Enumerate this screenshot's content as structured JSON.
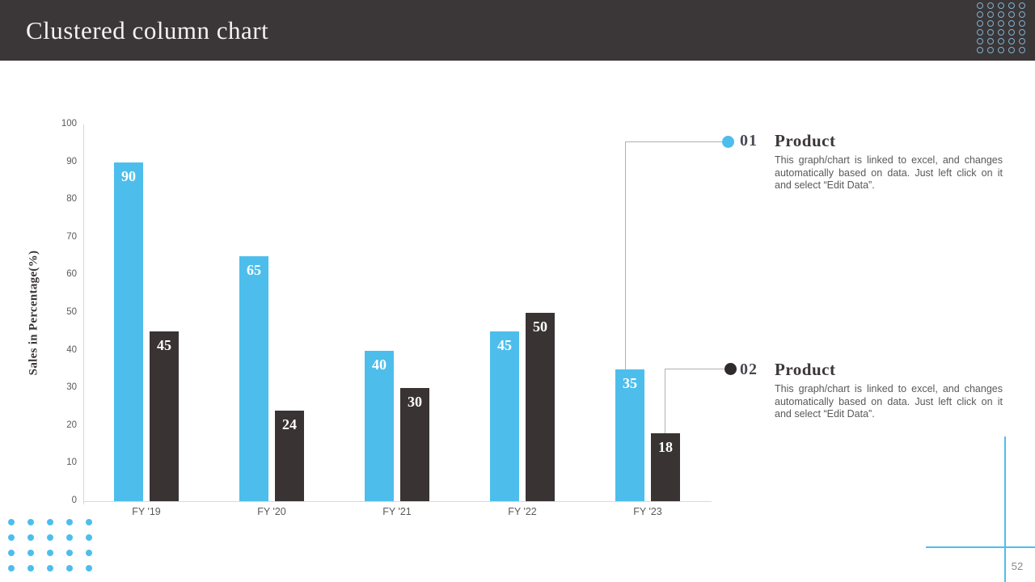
{
  "header": {
    "title": "Clustered column chart"
  },
  "chart_data": {
    "type": "bar",
    "title": "",
    "categories": [
      "FY '19",
      "FY '20",
      "FY '21",
      "FY '22",
      "FY '23"
    ],
    "series": [
      {
        "name": "Product 01",
        "color": "#4DBEEC",
        "values": [
          90,
          65,
          40,
          45,
          35
        ]
      },
      {
        "name": "Product 02",
        "color": "#393334",
        "values": [
          45,
          24,
          30,
          50,
          18
        ]
      }
    ],
    "xlabel": "",
    "ylabel": "Sales in Percentage(%)",
    "ylim": [
      0,
      100
    ],
    "ytick_step": 10,
    "grid": false,
    "bar_value_labels": true,
    "legend_position": "right-callouts"
  },
  "callouts": [
    {
      "number": "01",
      "title": "Product",
      "description": "This graph/chart is linked to excel, and changes automatically based on data. Just left click on it and select “Edit Data”.",
      "marker_color": "#4DBEEC"
    },
    {
      "number": "02",
      "title": "Product",
      "description": "This graph/chart is linked to excel, and changes automatically based on data. Just left click on it and select “Edit Data”.",
      "marker_color": "#2F2A2B"
    }
  ],
  "footer": {
    "page_number": "52"
  },
  "decor": {
    "accent_blue": "#4DBEEC",
    "dark": "#3B3637",
    "top_right_dot_grid": {
      "rows": 6,
      "cols": 5,
      "style": "ring",
      "color": "#7FB2D2"
    },
    "bottom_left_dot_grid": {
      "rows": 4,
      "cols": 5,
      "style": "filled",
      "color": "#4DBEEC"
    }
  }
}
